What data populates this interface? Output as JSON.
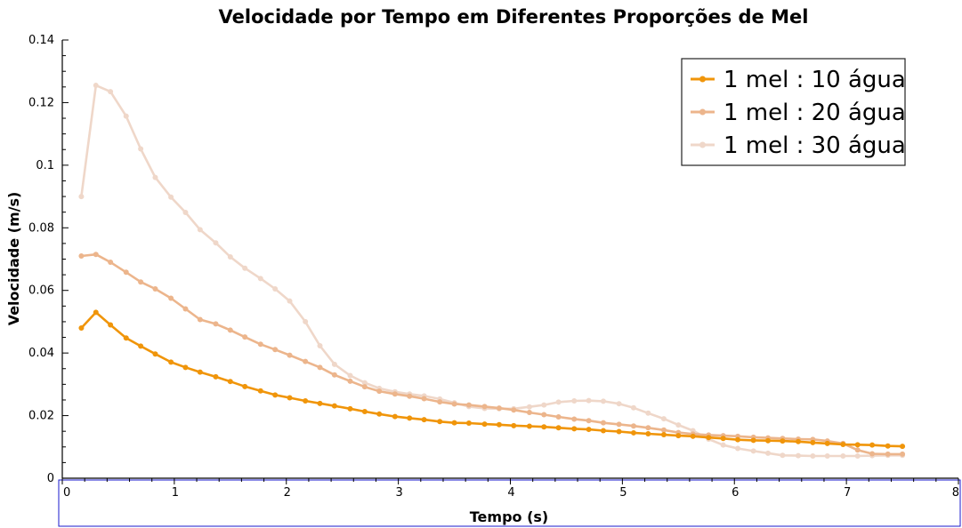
{
  "chart_data": {
    "type": "line",
    "title": "Velocidade por Tempo em Diferentes Proporções de Mel",
    "xlabel": "Tempo (s)",
    "ylabel": "Velocidade (m/s)",
    "xlim": [
      0,
      8
    ],
    "ylim": [
      0,
      0.14
    ],
    "xticks": [
      "0",
      "1",
      "2",
      "3",
      "4",
      "5",
      "6",
      "7",
      "8"
    ],
    "yticks": [
      "0",
      "0.02",
      "0.04",
      "0.06",
      "0.08",
      "0.1",
      "0.12",
      "0.14"
    ],
    "legend_position": "top-right",
    "grid": false,
    "x": [
      0.17,
      0.3,
      0.43,
      0.57,
      0.7,
      0.83,
      0.97,
      1.1,
      1.23,
      1.37,
      1.5,
      1.63,
      1.77,
      1.9,
      2.03,
      2.17,
      2.3,
      2.43,
      2.57,
      2.7,
      2.83,
      2.97,
      3.1,
      3.23,
      3.37,
      3.5,
      3.63,
      3.77,
      3.9,
      4.03,
      4.17,
      4.3,
      4.43,
      4.57,
      4.7,
      4.83,
      4.97,
      5.1,
      5.23,
      5.37,
      5.5,
      5.63,
      5.77,
      5.9,
      6.03,
      6.17,
      6.3,
      6.43,
      6.57,
      6.7,
      6.83,
      6.97,
      7.1,
      7.23,
      7.37,
      7.5
    ],
    "series": [
      {
        "name": "1 mel : 10 água",
        "color": "#f0950a",
        "values": [
          0.048,
          0.053,
          0.049,
          0.0448,
          0.0422,
          0.0397,
          0.0371,
          0.0354,
          0.0339,
          0.0324,
          0.0309,
          0.0293,
          0.0279,
          0.0266,
          0.0257,
          0.0247,
          0.0239,
          0.0231,
          0.0222,
          0.0213,
          0.0205,
          0.0197,
          0.0192,
          0.0187,
          0.0181,
          0.0177,
          0.0176,
          0.0173,
          0.0171,
          0.0168,
          0.0166,
          0.0164,
          0.0161,
          0.0158,
          0.0156,
          0.0152,
          0.0149,
          0.0145,
          0.0142,
          0.0139,
          0.0136,
          0.0134,
          0.013,
          0.0127,
          0.0123,
          0.0121,
          0.012,
          0.0119,
          0.0117,
          0.0114,
          0.0111,
          0.0108,
          0.0107,
          0.0106,
          0.0103,
          0.0102
        ]
      },
      {
        "name": "1 mel : 20 água",
        "color": "#ecb58c",
        "values": [
          0.071,
          0.0715,
          0.069,
          0.0658,
          0.0627,
          0.0605,
          0.0575,
          0.0541,
          0.0507,
          0.0493,
          0.0473,
          0.0451,
          0.0428,
          0.0411,
          0.0393,
          0.0373,
          0.0354,
          0.033,
          0.031,
          0.0292,
          0.0278,
          0.0269,
          0.0262,
          0.0254,
          0.0244,
          0.0237,
          0.0234,
          0.0229,
          0.0224,
          0.0218,
          0.021,
          0.0203,
          0.0196,
          0.0189,
          0.0184,
          0.0177,
          0.0172,
          0.0167,
          0.0161,
          0.0154,
          0.0146,
          0.0141,
          0.0138,
          0.0136,
          0.0134,
          0.0131,
          0.0129,
          0.0127,
          0.0125,
          0.0124,
          0.0119,
          0.0111,
          0.009,
          0.0078,
          0.0077,
          0.0077
        ]
      },
      {
        "name": "1 mel : 30 água",
        "color": "#efd7c9",
        "values": [
          0.09,
          0.1255,
          0.1235,
          0.1157,
          0.1052,
          0.0961,
          0.0898,
          0.0849,
          0.0794,
          0.0752,
          0.0707,
          0.0671,
          0.0638,
          0.0605,
          0.0566,
          0.05,
          0.0423,
          0.0364,
          0.0328,
          0.0305,
          0.0287,
          0.0276,
          0.0269,
          0.0263,
          0.0253,
          0.0241,
          0.0229,
          0.0223,
          0.0222,
          0.0222,
          0.0228,
          0.0234,
          0.0243,
          0.0247,
          0.0248,
          0.0246,
          0.0238,
          0.0225,
          0.0208,
          0.019,
          0.017,
          0.0152,
          0.0125,
          0.0106,
          0.0095,
          0.0087,
          0.008,
          0.0073,
          0.0072,
          0.0071,
          0.0071,
          0.0071,
          0.0071,
          0.0072,
          0.0073,
          0.0073
        ]
      }
    ]
  }
}
